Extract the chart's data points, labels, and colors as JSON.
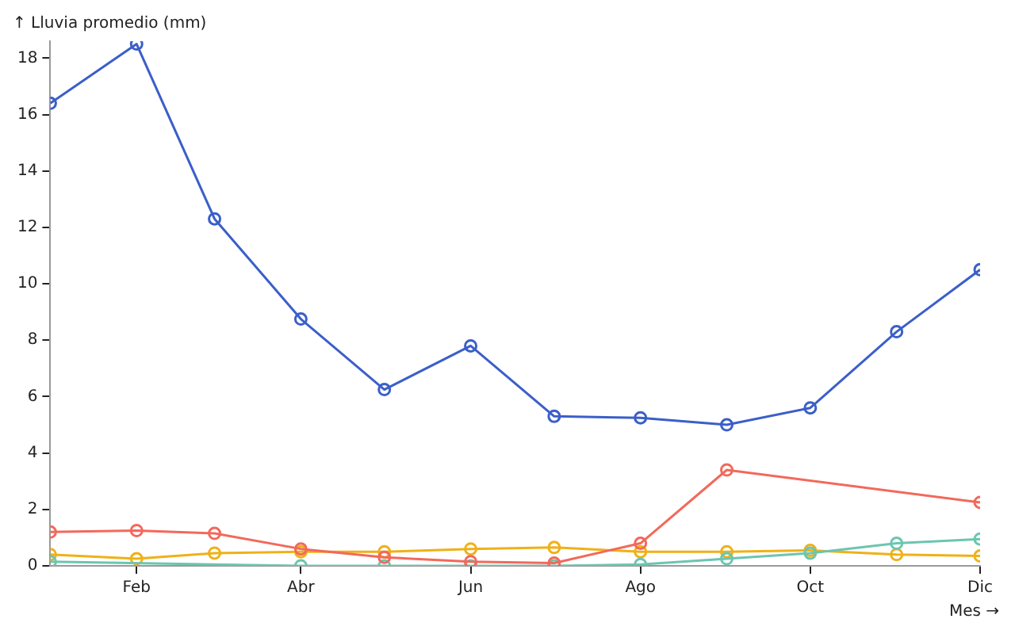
{
  "chart_data": {
    "type": "line",
    "xlabel": "Mes →",
    "ylabel": "↑ Lluvia promedio (mm)",
    "xlim": [
      "--01-01",
      "--12-01"
    ],
    "xticks": [
      {
        "value": "--02-01",
        "label": "Feb"
      },
      {
        "value": "--04-01",
        "label": "Abr"
      },
      {
        "value": "--06-01",
        "label": "Jun"
      },
      {
        "value": "--08-01",
        "label": "Ago"
      },
      {
        "value": "--10-01",
        "label": "Oct"
      },
      {
        "value": "--12-01",
        "label": "Dic"
      }
    ],
    "ylim": [
      0,
      18.6
    ],
    "yticks": [
      0,
      2,
      4,
      6,
      8,
      10,
      12,
      14,
      16,
      18
    ],
    "grid": false,
    "legend": false,
    "marker": "circle",
    "line_style": "solid",
    "series": [
      {
        "color": "#3b5fc9",
        "x": [
          "--01-01",
          "--02-01",
          "--03-01",
          "--04-01",
          "--05-01",
          "--06-01",
          "--07-01",
          "--08-01",
          "--09-01",
          "--10-01",
          "--11-01",
          "--12-01"
        ],
        "values": [
          16.4,
          18.5,
          12.3,
          8.75,
          6.25,
          7.8,
          5.3,
          5.25,
          5.0,
          5.6,
          8.3,
          10.5
        ]
      },
      {
        "color": "#f2695b",
        "x": [
          "--01-01",
          "--02-01",
          "--03-01",
          "--04-01",
          "--05-01",
          "--06-01",
          "--07-01",
          "--08-01",
          "--09-01",
          "--12-01"
        ],
        "values": [
          1.2,
          1.25,
          1.15,
          0.6,
          0.3,
          0.15,
          0.1,
          0.8,
          3.4,
          2.25
        ]
      },
      {
        "color": "#6cc5b0",
        "x": [
          "--01-01",
          "--04-01",
          "--05-01",
          "--06-01",
          "--07-01",
          "--08-01",
          "--09-01",
          "--10-01",
          "--11-01",
          "--12-01"
        ],
        "values": [
          0.15,
          0.0,
          0.0,
          0.0,
          0.0,
          0.05,
          0.25,
          0.45,
          0.8,
          0.95
        ]
      },
      {
        "color": "#efb118",
        "x": [
          "--01-01",
          "--02-01",
          "--03-01",
          "--04-01",
          "--05-01",
          "--06-01",
          "--07-01",
          "--08-01",
          "--09-01",
          "--10-01",
          "--11-01",
          "--12-01"
        ],
        "values": [
          0.4,
          0.25,
          0.45,
          0.5,
          0.5,
          0.6,
          0.65,
          0.5,
          0.5,
          0.55,
          0.4,
          0.35
        ]
      }
    ]
  }
}
